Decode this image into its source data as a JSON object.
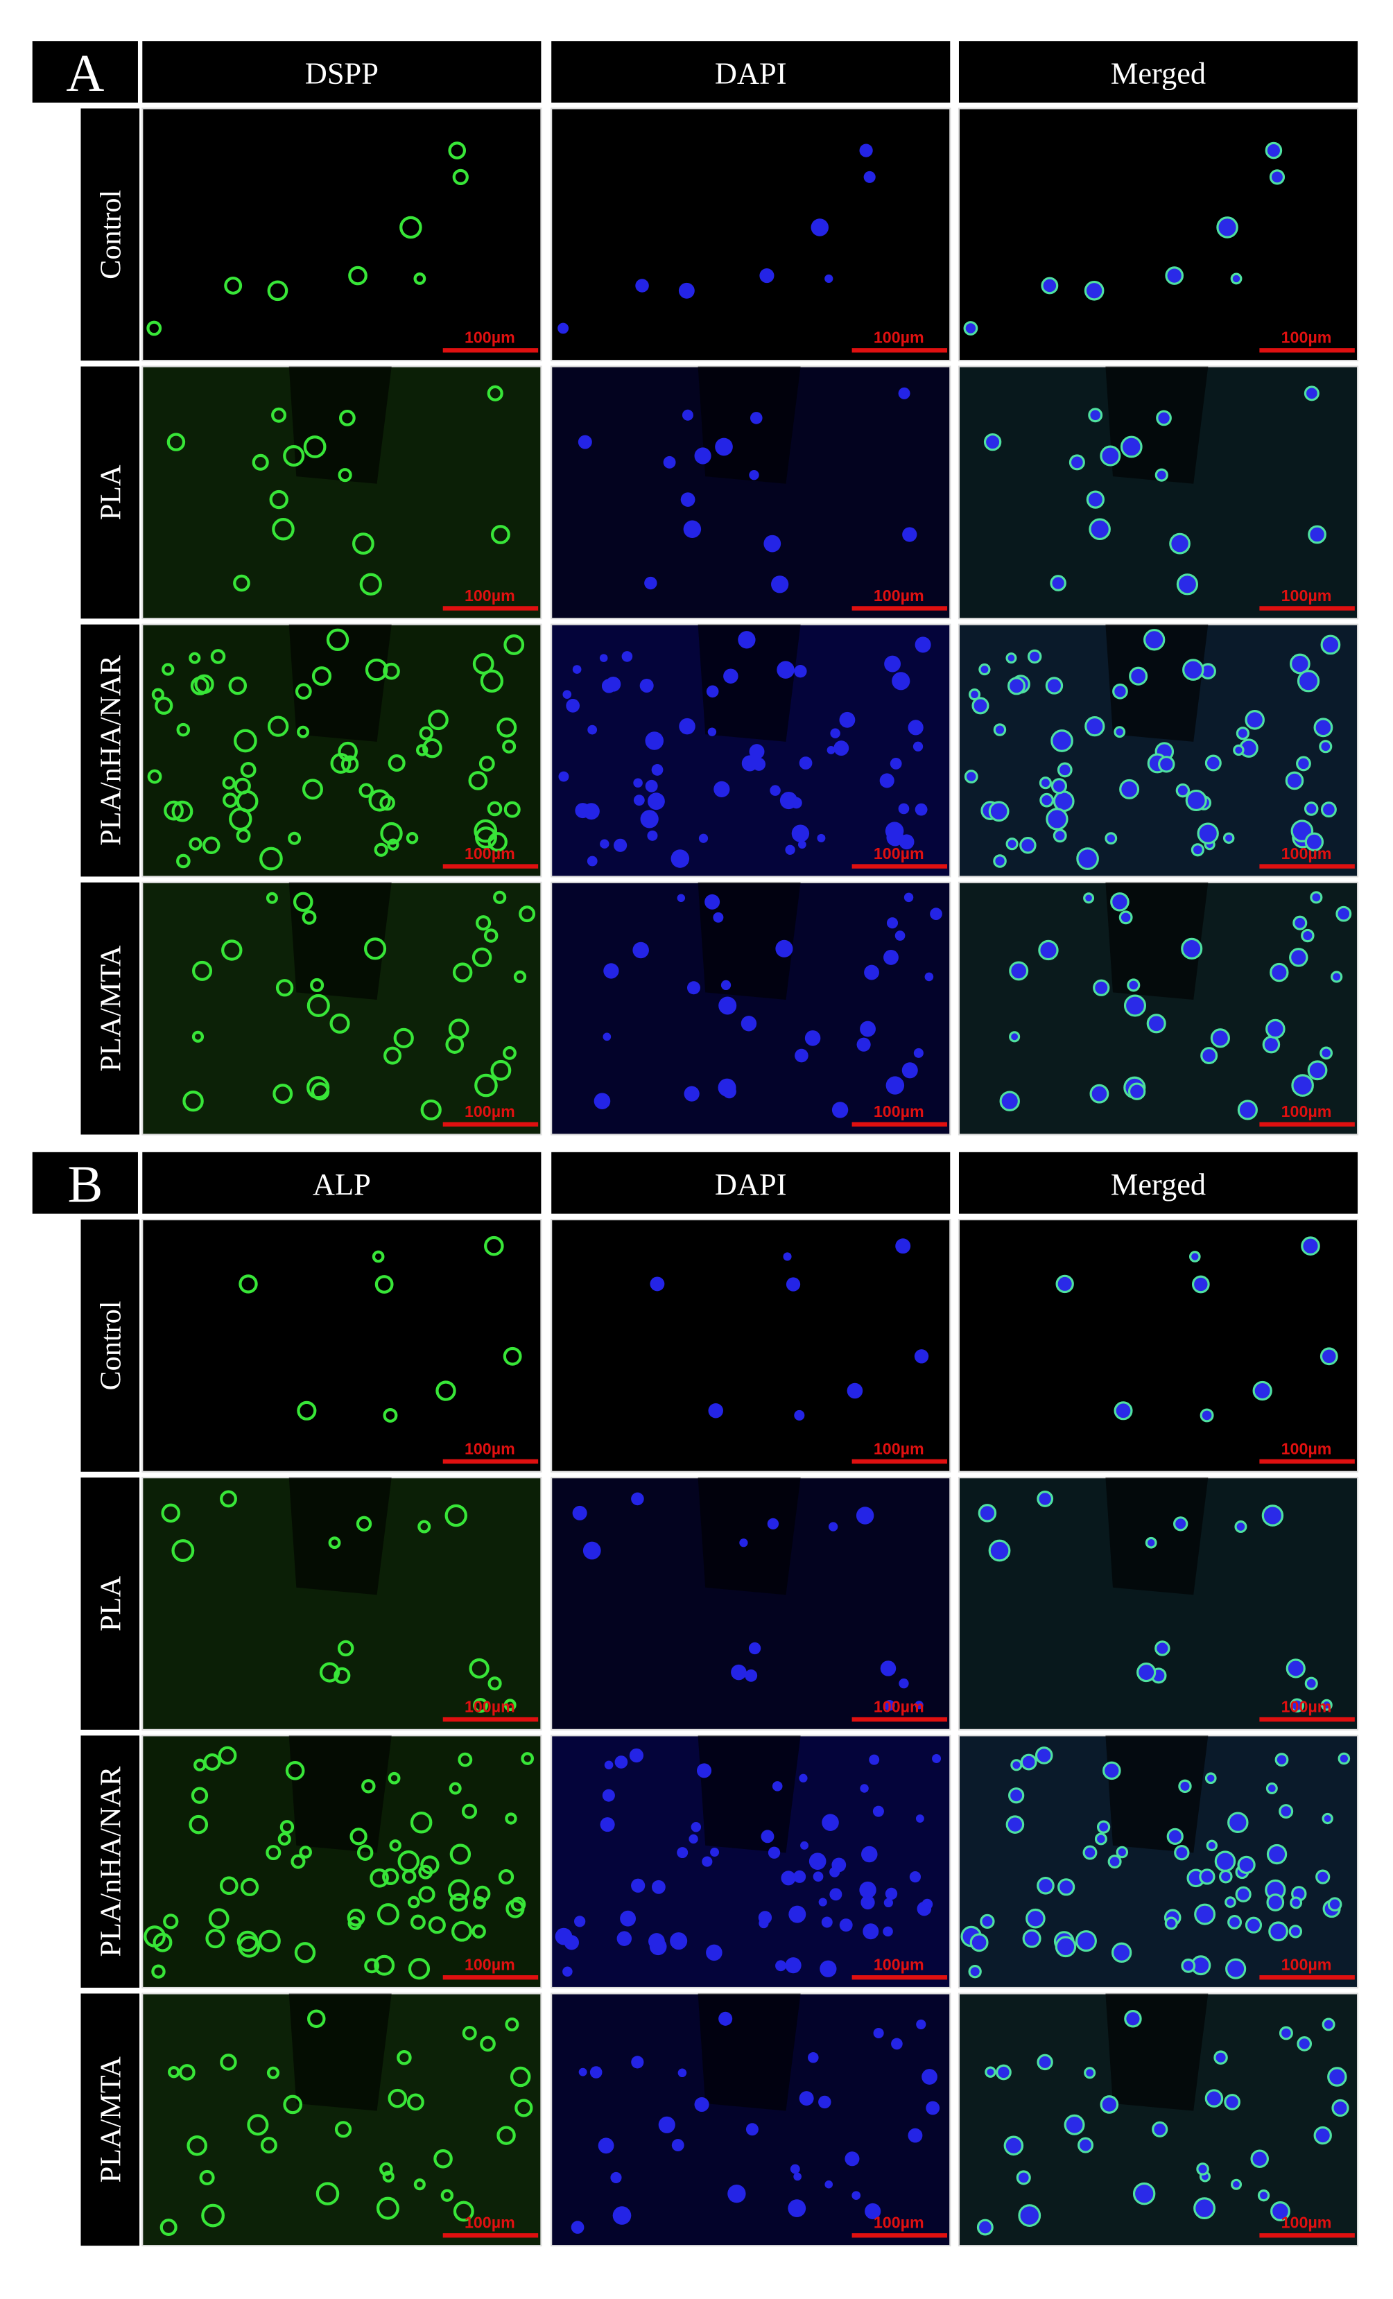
{
  "panels": [
    {
      "label": "A",
      "columns": [
        "DSPP",
        "DAPI",
        "Merged"
      ],
      "rows": [
        "Control",
        "PLA",
        "PLA/nHA/NAR",
        "PLA/MTA"
      ],
      "scale_bar": "100µm"
    },
    {
      "label": "B",
      "columns": [
        "ALP",
        "DAPI",
        "Merged"
      ],
      "rows": [
        "Control",
        "PLA",
        "PLA/nHA/NAR",
        "PLA/MTA"
      ],
      "scale_bar": "100µm"
    }
  ]
}
